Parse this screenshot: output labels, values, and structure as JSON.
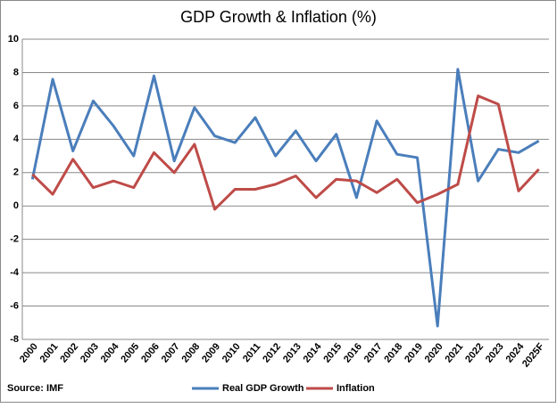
{
  "chart_data": {
    "type": "line",
    "title": "GDP Growth & Inflation (%)",
    "source": "Source: IMF",
    "categories": [
      "2000",
      "2001",
      "2002",
      "2003",
      "2004",
      "2005",
      "2006",
      "2007",
      "2008",
      "2009",
      "2010",
      "2011",
      "2012",
      "2013",
      "2014",
      "2015",
      "2016",
      "2017",
      "2018",
      "2019",
      "2020",
      "2021",
      "2022",
      "2023",
      "2024",
      "2025F"
    ],
    "series": [
      {
        "name": "Real GDP Growth",
        "color": "#4a7ebb",
        "values": [
          1.6,
          7.6,
          3.3,
          6.3,
          4.8,
          3.0,
          7.8,
          2.7,
          5.9,
          4.2,
          3.8,
          5.3,
          3.0,
          4.5,
          2.7,
          4.3,
          0.5,
          5.1,
          3.1,
          2.9,
          -7.2,
          8.2,
          1.5,
          3.4,
          3.2,
          3.9
        ]
      },
      {
        "name": "Inflation",
        "color": "#be4b48",
        "values": [
          1.9,
          0.7,
          2.8,
          1.1,
          1.5,
          1.1,
          3.2,
          2.0,
          3.7,
          -0.2,
          1.0,
          1.0,
          1.3,
          1.8,
          0.5,
          1.6,
          1.5,
          0.8,
          1.6,
          0.2,
          0.7,
          1.3,
          6.6,
          6.1,
          0.9,
          2.2
        ]
      }
    ],
    "ylim": [
      -8,
      10
    ],
    "yticks": [
      10,
      8,
      6,
      4,
      2,
      0,
      -2,
      -4,
      -6,
      -8
    ],
    "grid": true,
    "legend": "bottom"
  }
}
